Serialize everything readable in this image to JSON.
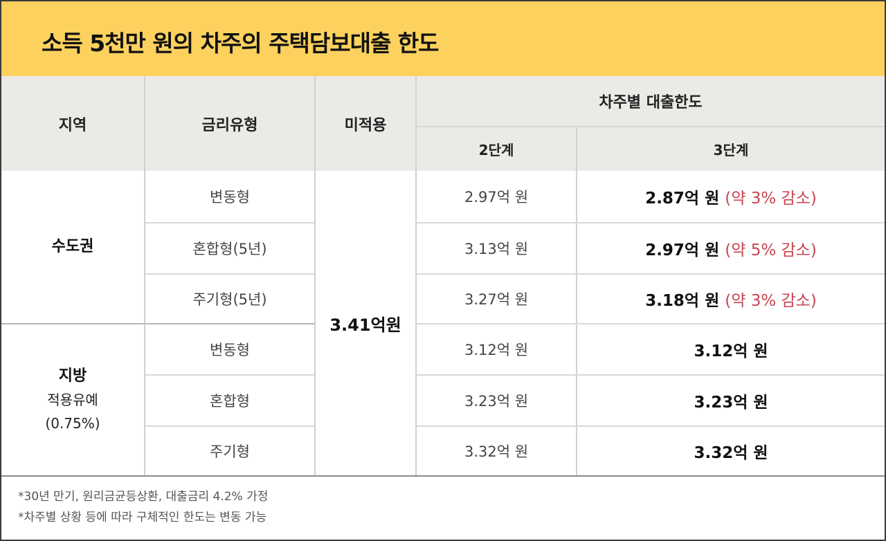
{
  "title": "소득 5천만 원의 차주의 주택담보대출 한도",
  "header": {
    "region": "지역",
    "rate_type": "금리유형",
    "not_applied": "미적용",
    "limit_group": "차주별 대출한도",
    "stage2": "2단계",
    "stage3": "3단계"
  },
  "not_applied_value": "3.41억원",
  "regions": {
    "capital": {
      "name": "수도권"
    },
    "local": {
      "name": "지방",
      "note": "적용유예",
      "rate": "(0.75%)"
    }
  },
  "rows": [
    {
      "type": "변동형",
      "stage2": "2.97억 원",
      "stage3": "2.87억 원",
      "change": "(약 3% 감소)"
    },
    {
      "type": "혼합형(5년)",
      "stage2": "3.13억 원",
      "stage3": "2.97억 원",
      "change": "(약 5% 감소)"
    },
    {
      "type": "주기형(5년)",
      "stage2": "3.27억 원",
      "stage3": "3.18억 원",
      "change": "(약 3% 감소)"
    },
    {
      "type": "변동형",
      "stage2": "3.12억 원",
      "stage3": "3.12억 원"
    },
    {
      "type": "혼합형",
      "stage2": "3.23억 원",
      "stage3": "3.23억 원"
    },
    {
      "type": "주기형",
      "stage2": "3.32억 원",
      "stage3": "3.32억 원"
    }
  ],
  "footnotes": [
    "*30년 만기, 원리금균등상환, 대출금리 4.2% 가정",
    "*차주별 상황 등에 따라 구체적인 한도는 변동 가능"
  ],
  "colors": {
    "title_bg": "#fcd15e",
    "header_bg": "#eceae6",
    "decrease": "#c8444f"
  }
}
